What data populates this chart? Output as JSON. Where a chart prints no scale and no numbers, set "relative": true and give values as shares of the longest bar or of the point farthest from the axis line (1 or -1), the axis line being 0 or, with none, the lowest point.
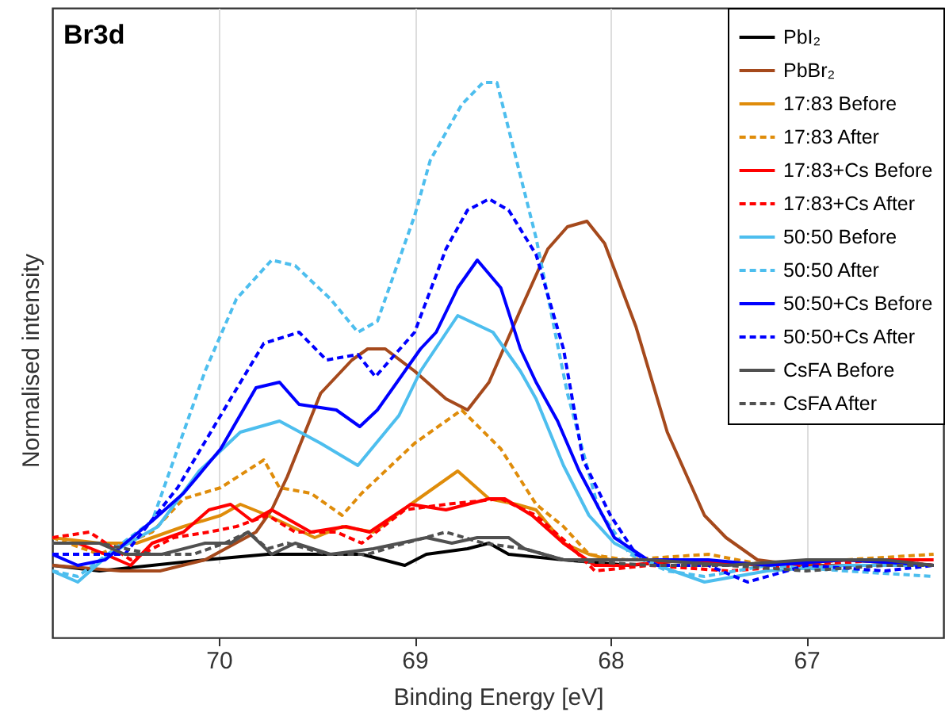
{
  "chart_data": {
    "type": "line",
    "title": "Br3d",
    "xlabel": "Binding Energy [eV]",
    "ylabel": "Normalised intensity",
    "relative": true,
    "xlim": [
      70.85,
      66.3
    ],
    "xticks": [
      70,
      69,
      68,
      67
    ],
    "grid": "x",
    "legend": "top right",
    "tick_labels": "x",
    "series": [
      {
        "name": "PbI₂",
        "color": "#000000",
        "line_style": "solid",
        "x": [
          70.85,
          70.61,
          70.07,
          69.75,
          69.59,
          69.27,
          69.05,
          68.94,
          68.73,
          68.62,
          68.52,
          68.24,
          67.9,
          67.6,
          67.2,
          66.8,
          66.35
        ],
        "values": [
          0.13,
          0.12,
          0.14,
          0.15,
          0.15,
          0.15,
          0.13,
          0.15,
          0.16,
          0.17,
          0.15,
          0.14,
          0.13,
          0.14,
          0.13,
          0.14,
          0.13
        ]
      },
      {
        "name": "PbBr₂",
        "color": "#a5491c",
        "line_style": "solid",
        "x": [
          70.85,
          70.5,
          70.3,
          70.07,
          69.81,
          69.73,
          69.65,
          69.48,
          69.32,
          69.24,
          69.15,
          69.0,
          68.84,
          68.73,
          68.62,
          68.46,
          68.32,
          68.22,
          68.12,
          68.03,
          67.87,
          67.71,
          67.52,
          67.41,
          67.25,
          67.03,
          66.8,
          66.6,
          66.35
        ],
        "values": [
          0.13,
          0.12,
          0.12,
          0.14,
          0.19,
          0.23,
          0.29,
          0.44,
          0.5,
          0.52,
          0.52,
          0.48,
          0.43,
          0.41,
          0.46,
          0.59,
          0.7,
          0.74,
          0.75,
          0.71,
          0.56,
          0.37,
          0.22,
          0.18,
          0.14,
          0.13,
          0.13,
          0.13,
          0.13
        ]
      },
      {
        "name": "17:83 Before",
        "color": "#df8c0a",
        "line_style": "solid",
        "x": [
          70.85,
          70.61,
          70.42,
          70.18,
          69.99,
          69.89,
          69.75,
          69.51,
          69.37,
          69.21,
          69.02,
          68.78,
          68.62,
          68.48,
          68.38,
          68.24,
          68.11,
          68.0,
          67.6,
          67.2,
          66.8,
          66.35
        ],
        "values": [
          0.18,
          0.17,
          0.17,
          0.2,
          0.22,
          0.24,
          0.22,
          0.18,
          0.2,
          0.19,
          0.24,
          0.3,
          0.25,
          0.24,
          0.23,
          0.17,
          0.15,
          0.14,
          0.14,
          0.13,
          0.14,
          0.13
        ]
      },
      {
        "name": "17:83 After",
        "color": "#df8c0a",
        "line_style": "dashed",
        "x": [
          70.85,
          70.61,
          70.34,
          70.18,
          69.99,
          69.77,
          69.69,
          69.53,
          69.37,
          69.27,
          69.0,
          68.76,
          68.56,
          68.38,
          68.24,
          68.11,
          67.92,
          67.5,
          67.2,
          66.8,
          66.35
        ],
        "values": [
          0.18,
          0.15,
          0.19,
          0.25,
          0.27,
          0.32,
          0.27,
          0.26,
          0.22,
          0.26,
          0.35,
          0.41,
          0.34,
          0.24,
          0.2,
          0.15,
          0.14,
          0.15,
          0.13,
          0.14,
          0.15
        ]
      },
      {
        "name": "17:83+Cs Before",
        "color": "#ff0000",
        "line_style": "solid",
        "x": [
          70.85,
          70.72,
          70.58,
          70.45,
          70.34,
          70.18,
          70.05,
          69.94,
          69.83,
          69.73,
          69.53,
          69.35,
          69.23,
          69.02,
          68.84,
          68.62,
          68.54,
          68.4,
          68.24,
          68.08,
          67.92,
          67.6,
          67.2,
          66.8,
          66.35
        ],
        "values": [
          0.17,
          0.17,
          0.15,
          0.13,
          0.17,
          0.19,
          0.23,
          0.24,
          0.21,
          0.23,
          0.19,
          0.2,
          0.19,
          0.24,
          0.23,
          0.25,
          0.25,
          0.22,
          0.17,
          0.13,
          0.13,
          0.14,
          0.13,
          0.14,
          0.14
        ]
      },
      {
        "name": "17:83+Cs After",
        "color": "#ff0000",
        "line_style": "dashed",
        "x": [
          70.85,
          70.66,
          70.45,
          70.23,
          70.05,
          69.91,
          69.75,
          69.61,
          69.4,
          69.27,
          69.05,
          68.84,
          68.56,
          68.38,
          68.22,
          68.08,
          67.8,
          67.4,
          67.0,
          66.6,
          66.35
        ],
        "values": [
          0.18,
          0.19,
          0.14,
          0.18,
          0.19,
          0.2,
          0.22,
          0.19,
          0.19,
          0.17,
          0.23,
          0.24,
          0.25,
          0.22,
          0.17,
          0.12,
          0.13,
          0.12,
          0.13,
          0.14,
          0.13
        ]
      },
      {
        "name": "50:50 Before",
        "color": "#4dbeee",
        "line_style": "solid",
        "x": [
          70.85,
          70.72,
          70.56,
          70.31,
          70.1,
          69.89,
          69.69,
          69.48,
          69.29,
          69.08,
          68.97,
          68.78,
          68.6,
          68.46,
          68.38,
          68.24,
          68.11,
          67.98,
          67.76,
          67.52,
          67.2,
          66.8,
          66.35
        ],
        "values": [
          0.12,
          0.1,
          0.15,
          0.2,
          0.3,
          0.37,
          0.39,
          0.35,
          0.31,
          0.4,
          0.48,
          0.58,
          0.55,
          0.48,
          0.43,
          0.31,
          0.22,
          0.17,
          0.13,
          0.1,
          0.12,
          0.13,
          0.13
        ]
      },
      {
        "name": "50:50 After",
        "color": "#4dbeee",
        "line_style": "dashed",
        "x": [
          70.85,
          70.72,
          70.34,
          70.07,
          69.91,
          69.73,
          69.61,
          69.43,
          69.29,
          69.19,
          69.0,
          68.92,
          68.76,
          68.65,
          68.58,
          68.48,
          68.38,
          68.22,
          68.06,
          67.9,
          67.71,
          67.52,
          67.2,
          66.8,
          66.35
        ],
        "values": [
          0.12,
          0.11,
          0.21,
          0.48,
          0.61,
          0.68,
          0.67,
          0.61,
          0.55,
          0.57,
          0.76,
          0.86,
          0.96,
          1,
          1,
          0.86,
          0.72,
          0.44,
          0.23,
          0.15,
          0.12,
          0.11,
          0.13,
          0.12,
          0.11
        ]
      },
      {
        "name": "50:50+Cs Before",
        "color": "#0000ff",
        "line_style": "solid",
        "x": [
          70.85,
          70.72,
          70.58,
          70.34,
          70.18,
          69.99,
          69.81,
          69.69,
          69.59,
          69.4,
          69.28,
          69.19,
          68.97,
          68.89,
          68.78,
          68.68,
          68.56,
          68.46,
          68.38,
          68.27,
          68.16,
          67.98,
          67.81,
          67.5,
          67.2,
          66.8,
          66.35
        ],
        "values": [
          0.15,
          0.13,
          0.14,
          0.21,
          0.26,
          0.34,
          0.45,
          0.46,
          0.42,
          0.41,
          0.38,
          0.41,
          0.52,
          0.55,
          0.63,
          0.68,
          0.63,
          0.52,
          0.46,
          0.39,
          0.3,
          0.18,
          0.14,
          0.14,
          0.13,
          0.14,
          0.13
        ]
      },
      {
        "name": "50:50+Cs After",
        "color": "#0000ff",
        "line_style": "dashed",
        "x": [
          70.85,
          70.69,
          70.48,
          70.21,
          69.94,
          69.77,
          69.59,
          69.45,
          69.29,
          69.2,
          69.0,
          68.84,
          68.73,
          68.62,
          68.52,
          68.38,
          68.24,
          68.14,
          68.0,
          67.87,
          67.76,
          67.5,
          67.3,
          67.0,
          66.6,
          66.35
        ],
        "values": [
          0.15,
          0.15,
          0.15,
          0.27,
          0.43,
          0.53,
          0.55,
          0.5,
          0.51,
          0.47,
          0.55,
          0.7,
          0.77,
          0.79,
          0.77,
          0.69,
          0.52,
          0.32,
          0.22,
          0.15,
          0.13,
          0.13,
          0.1,
          0.13,
          0.12,
          0.13
        ]
      },
      {
        "name": "CsFA Before",
        "color": "#505050",
        "line_style": "solid",
        "x": [
          70.85,
          70.61,
          70.48,
          70.29,
          70.07,
          69.94,
          69.85,
          69.73,
          69.61,
          69.43,
          69.21,
          68.94,
          68.81,
          68.68,
          68.52,
          68.44,
          68.24,
          67.8,
          67.4,
          67.0,
          66.6,
          66.35
        ],
        "values": [
          0.17,
          0.17,
          0.15,
          0.15,
          0.17,
          0.17,
          0.19,
          0.15,
          0.17,
          0.15,
          0.16,
          0.18,
          0.17,
          0.18,
          0.18,
          0.16,
          0.14,
          0.14,
          0.13,
          0.14,
          0.14,
          0.13
        ]
      },
      {
        "name": "CsFA After",
        "color": "#505050",
        "line_style": "dashed",
        "x": [
          70.85,
          70.61,
          70.34,
          70.13,
          69.97,
          69.85,
          69.75,
          69.65,
          69.45,
          69.24,
          69.05,
          68.84,
          68.65,
          68.44,
          68.24,
          67.8,
          67.4,
          67.0,
          66.6,
          66.35
        ],
        "values": [
          0.17,
          0.17,
          0.15,
          0.15,
          0.17,
          0.19,
          0.16,
          0.17,
          0.15,
          0.15,
          0.17,
          0.19,
          0.17,
          0.16,
          0.14,
          0.13,
          0.13,
          0.12,
          0.13,
          0.13
        ]
      }
    ]
  }
}
